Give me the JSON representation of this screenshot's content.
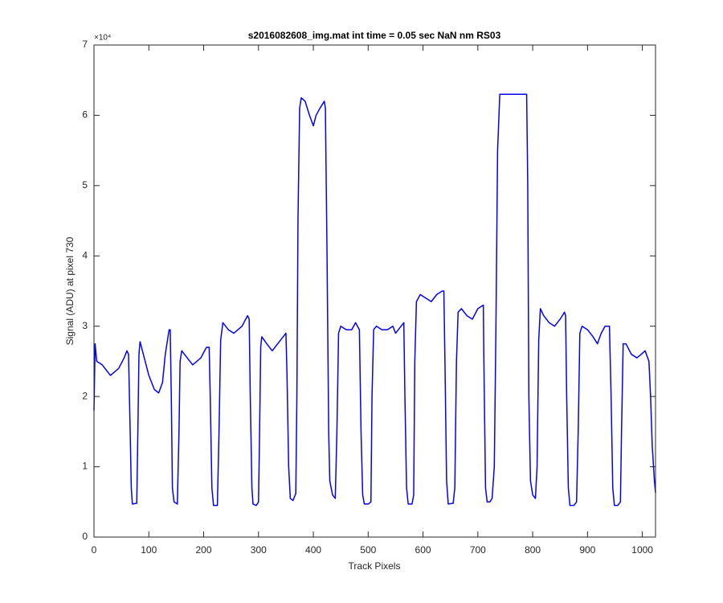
{
  "chart_data": {
    "type": "line",
    "title": "s2016082608_img.mat int time = 0.05 sec  NaN nm RS03",
    "x_label": "Track Pixels",
    "y_label": "Signal (ADU) at pixel 730",
    "y_exponent_label": "×10⁴",
    "xlim": [
      0,
      1024
    ],
    "xticks": [
      0,
      100,
      200,
      300,
      400,
      500,
      600,
      700,
      800,
      900,
      1000
    ],
    "ylim": [
      0,
      7
    ],
    "yticks": [
      0,
      1,
      2,
      3,
      4,
      5,
      6,
      7
    ],
    "grid": false,
    "color": "#0000ff",
    "x": [
      0,
      2,
      5,
      15,
      30,
      45,
      55,
      60,
      63,
      66,
      68,
      70,
      78,
      80,
      82,
      84,
      90,
      100,
      110,
      118,
      125,
      130,
      137,
      139,
      141,
      143,
      146,
      152,
      155,
      157,
      160,
      170,
      180,
      195,
      205,
      210,
      212,
      215,
      218,
      225,
      228,
      231,
      235,
      245,
      255,
      270,
      280,
      283,
      285,
      288,
      290,
      296,
      300,
      302,
      304,
      306,
      315,
      325,
      335,
      345,
      350,
      352,
      355,
      358,
      363,
      368,
      370,
      372,
      375,
      378,
      385,
      393,
      400,
      405,
      412,
      420,
      422,
      425,
      428,
      430,
      435,
      440,
      443,
      446,
      450,
      460,
      470,
      477,
      484,
      487,
      490,
      493,
      500,
      505,
      507,
      510,
      515,
      525,
      535,
      545,
      550,
      560,
      565,
      567,
      570,
      573,
      580,
      583,
      585,
      588,
      595,
      605,
      615,
      625,
      635,
      638,
      640,
      643,
      646,
      655,
      658,
      661,
      664,
      670,
      680,
      690,
      700,
      710,
      711,
      714,
      717,
      722,
      726,
      730,
      733,
      736,
      740,
      760,
      789,
      791,
      793,
      796,
      800,
      805,
      808,
      811,
      814,
      820,
      830,
      840,
      850,
      858,
      860,
      862,
      865,
      868,
      875,
      880,
      883,
      886,
      890,
      900,
      910,
      918,
      925,
      932,
      940,
      943,
      946,
      949,
      955,
      960,
      962,
      965,
      970,
      980,
      990,
      998,
      1005,
      1012,
      1015,
      1018,
      1022,
      1024
    ],
    "values": [
      1.8,
      2.75,
      2.5,
      2.45,
      2.3,
      2.4,
      2.55,
      2.65,
      2.6,
      1.5,
      0.7,
      0.47,
      0.48,
      1.5,
      2.6,
      2.78,
      2.6,
      2.3,
      2.1,
      2.05,
      2.2,
      2.6,
      2.95,
      2.95,
      2.0,
      0.7,
      0.5,
      0.47,
      1.5,
      2.5,
      2.65,
      2.55,
      2.45,
      2.55,
      2.7,
      2.7,
      2.0,
      0.7,
      0.45,
      0.45,
      1.5,
      2.8,
      3.05,
      2.95,
      2.9,
      3.0,
      3.15,
      3.1,
      2.0,
      0.7,
      0.47,
      0.45,
      0.5,
      1.5,
      2.7,
      2.85,
      2.75,
      2.65,
      2.75,
      2.85,
      2.9,
      2.3,
      1.0,
      0.55,
      0.52,
      0.62,
      2.0,
      4.5,
      6.1,
      6.25,
      6.2,
      6.0,
      5.85,
      6.0,
      6.1,
      6.2,
      6.1,
      4.0,
      1.5,
      0.8,
      0.6,
      0.55,
      1.5,
      2.9,
      3.0,
      2.95,
      2.95,
      3.05,
      2.95,
      1.5,
      0.6,
      0.47,
      0.47,
      0.5,
      2.0,
      2.95,
      3.0,
      2.95,
      2.95,
      3.0,
      2.9,
      3.0,
      3.05,
      2.0,
      0.7,
      0.47,
      0.47,
      0.6,
      2.5,
      3.35,
      3.45,
      3.4,
      3.35,
      3.45,
      3.5,
      3.5,
      2.5,
      0.8,
      0.47,
      0.48,
      0.7,
      2.5,
      3.2,
      3.25,
      3.15,
      3.1,
      3.25,
      3.3,
      2.5,
      0.7,
      0.5,
      0.5,
      0.55,
      1.0,
      3.0,
      5.5,
      6.3,
      6.3,
      6.3,
      5.0,
      2.0,
      0.8,
      0.6,
      0.55,
      1.0,
      2.8,
      3.25,
      3.15,
      3.05,
      3.0,
      3.1,
      3.2,
      3.15,
      2.0,
      0.7,
      0.45,
      0.45,
      0.5,
      1.5,
      2.9,
      3.0,
      2.95,
      2.85,
      2.75,
      2.9,
      3.0,
      3.0,
      2.0,
      0.7,
      0.45,
      0.45,
      0.5,
      1.5,
      2.75,
      2.75,
      2.6,
      2.55,
      2.6,
      2.65,
      2.5,
      2.0,
      1.3,
      0.8,
      0.63
    ]
  }
}
